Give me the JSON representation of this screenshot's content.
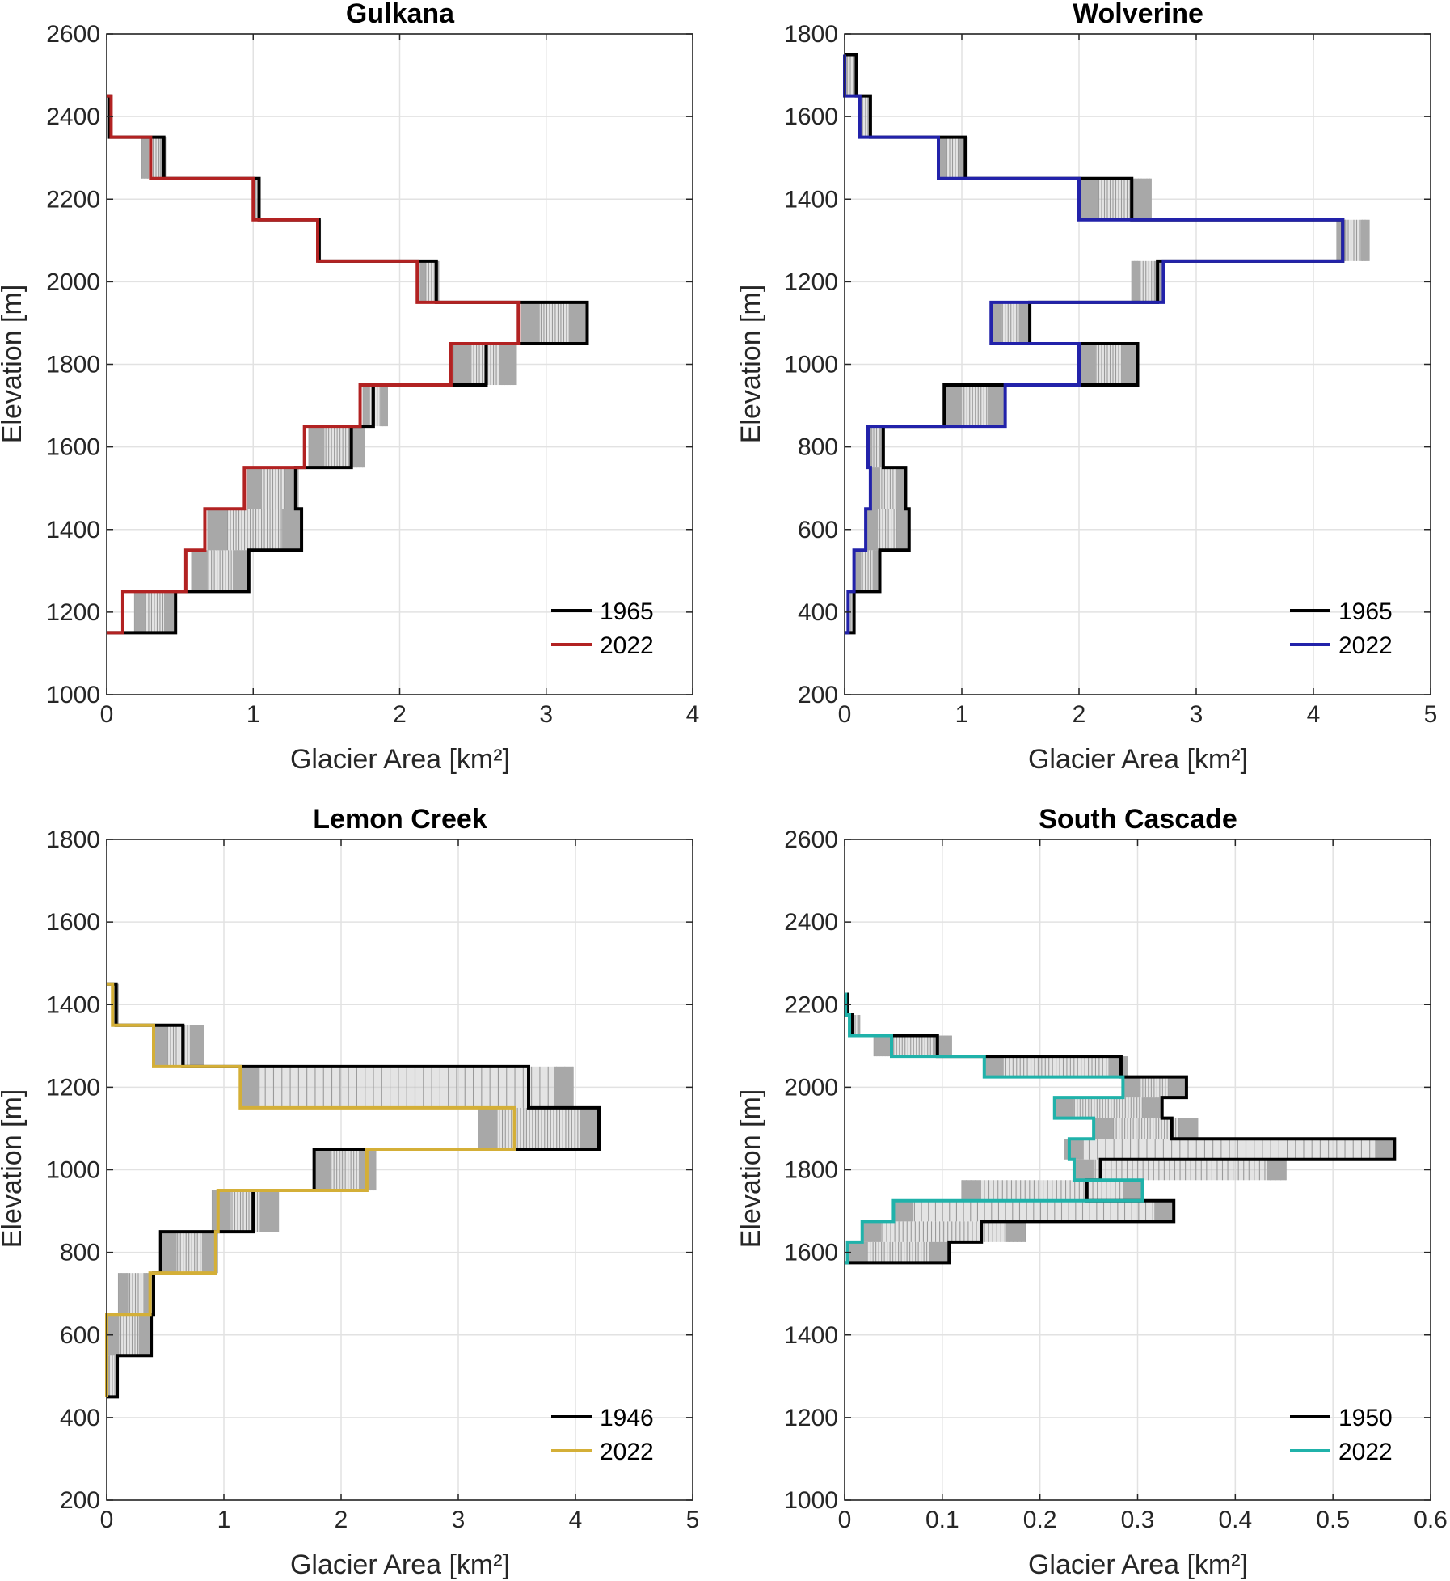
{
  "chart_data": [
    {
      "type": "line",
      "style": "stepped elevation-band profile with shaded annual change bars",
      "title": "Gulkana",
      "xlabel": "Glacier Area [km²]",
      "ylabel": "Elevation [m]",
      "xlim": [
        0,
        4
      ],
      "ylim": [
        1000,
        2600
      ],
      "xticks": [
        0,
        1,
        2,
        3,
        4
      ],
      "yticks": [
        1000,
        1200,
        1400,
        1600,
        1800,
        2000,
        2200,
        2400,
        2600
      ],
      "grid": true,
      "legend_position": "bottom-right",
      "band_edges": [
        1150,
        1250,
        1350,
        1450,
        1550,
        1650,
        1750,
        1850,
        1950,
        2050,
        2150,
        2250,
        2350,
        2450
      ],
      "series": [
        {
          "name": "1965",
          "color": "#000000",
          "values": [
            0.47,
            0.97,
            1.33,
            1.29,
            1.67,
            1.82,
            2.59,
            3.28,
            2.25,
            1.45,
            1.04,
            0.39,
            0.02
          ]
        },
        {
          "name": "2022",
          "color": "#B22222",
          "values": [
            0.11,
            0.54,
            0.67,
            0.94,
            1.35,
            1.73,
            2.35,
            2.81,
            2.12,
            1.44,
            1.0,
            0.3,
            0.03
          ]
        }
      ],
      "range_min": [
        0.19,
        0.58,
        0.69,
        0.96,
        1.38,
        1.75,
        2.37,
        2.83,
        2.14,
        1.44,
        1.0,
        0.24,
        0.02
      ],
      "range_max": [
        0.47,
        0.97,
        1.33,
        1.31,
        1.76,
        1.92,
        2.8,
        3.28,
        2.27,
        1.46,
        1.04,
        0.41,
        0.03
      ]
    },
    {
      "type": "line",
      "style": "stepped elevation-band profile with shaded annual change bars",
      "title": "Wolverine",
      "xlabel": "Glacier Area [km²]",
      "ylabel": "Elevation [m]",
      "xlim": [
        0,
        5
      ],
      "ylim": [
        200,
        1800
      ],
      "xticks": [
        0,
        1,
        2,
        3,
        4,
        5
      ],
      "yticks": [
        200,
        400,
        600,
        800,
        1000,
        1200,
        1400,
        1600,
        1800
      ],
      "grid": true,
      "legend_position": "bottom-right",
      "band_edges": [
        350,
        450,
        550,
        650,
        750,
        850,
        950,
        1050,
        1150,
        1250,
        1350,
        1450,
        1550,
        1650,
        1750
      ],
      "series": [
        {
          "name": "1965",
          "color": "#000000",
          "values": [
            0.08,
            0.3,
            0.55,
            0.52,
            0.33,
            0.85,
            2.5,
            1.58,
            2.67,
            4.25,
            2.45,
            1.03,
            0.22,
            0.1
          ]
        },
        {
          "name": "2022",
          "color": "#2222AA",
          "values": [
            0.03,
            0.08,
            0.18,
            0.22,
            0.2,
            1.37,
            2.0,
            1.25,
            2.72,
            4.25,
            2.0,
            0.8,
            0.13,
            0.0
          ]
        }
      ],
      "range_min": [
        0.03,
        0.08,
        0.18,
        0.22,
        0.2,
        0.85,
        2.0,
        1.25,
        2.45,
        4.2,
        2.0,
        0.8,
        0.13,
        0.0
      ],
      "range_max": [
        0.08,
        0.3,
        0.55,
        0.52,
        0.33,
        1.37,
        2.5,
        1.58,
        2.72,
        4.48,
        2.62,
        1.05,
        0.22,
        0.1
      ]
    },
    {
      "type": "line",
      "style": "stepped elevation-band profile with shaded annual change bars",
      "title": "Lemon Creek",
      "xlabel": "Glacier Area [km²]",
      "ylabel": "Elevation [m]",
      "xlim": [
        0,
        5
      ],
      "ylim": [
        200,
        1800
      ],
      "xticks": [
        0,
        1,
        2,
        3,
        4,
        5
      ],
      "yticks": [
        200,
        400,
        600,
        800,
        1000,
        1200,
        1400,
        1600,
        1800
      ],
      "grid": true,
      "legend_position": "bottom-right",
      "band_edges": [
        450,
        550,
        650,
        750,
        850,
        950,
        1050,
        1150,
        1250,
        1350,
        1450
      ],
      "series": [
        {
          "name": "1946",
          "color": "#000000",
          "values": [
            0.09,
            0.38,
            0.4,
            0.46,
            1.25,
            1.77,
            4.2,
            3.6,
            0.65,
            0.08
          ]
        },
        {
          "name": "2022",
          "color": "#D4AF37",
          "values": [
            0.0,
            0.0,
            0.37,
            0.93,
            0.95,
            2.22,
            3.48,
            1.14,
            0.4,
            0.05
          ]
        }
      ],
      "range_min": [
        0.0,
        0.0,
        0.1,
        0.46,
        0.9,
        1.77,
        3.17,
        1.14,
        0.4,
        0.05
      ],
      "range_max": [
        0.09,
        0.38,
        0.4,
        0.95,
        1.47,
        2.3,
        4.2,
        3.98,
        0.83,
        0.1
      ]
    },
    {
      "type": "line",
      "style": "stepped elevation-band profile with shaded annual change bars",
      "title": "South Cascade",
      "xlabel": "Glacier Area [km²]",
      "ylabel": "Elevation [m]",
      "xlim": [
        0,
        0.6
      ],
      "ylim": [
        1000,
        2600
      ],
      "xticks": [
        0,
        0.1,
        0.2,
        0.3,
        0.4,
        0.5,
        0.6
      ],
      "xtick_labels": [
        "0",
        "0.1",
        "0.2",
        "0.3",
        "0.4",
        "0.5",
        "0.6"
      ],
      "yticks": [
        1000,
        1200,
        1400,
        1600,
        1800,
        2000,
        2200,
        2400,
        2600
      ],
      "grid": true,
      "legend_position": "bottom-right",
      "band_edges": [
        1575,
        1625,
        1675,
        1725,
        1775,
        1825,
        1875,
        1925,
        1975,
        2025,
        2075,
        2125,
        2175,
        2225
      ],
      "series": [
        {
          "name": "1950",
          "color": "#000000",
          "values": [
            0.107,
            0.14,
            0.337,
            0.248,
            0.262,
            0.563,
            0.335,
            0.325,
            0.35,
            0.283,
            0.095,
            0.008,
            0.003
          ]
        },
        {
          "name": "2022",
          "color": "#20B2AA",
          "values": [
            0.003,
            0.018,
            0.05,
            0.305,
            0.235,
            0.23,
            0.255,
            0.215,
            0.285,
            0.143,
            0.048,
            0.005,
            0.001
          ]
        }
      ],
      "range_min": [
        0.003,
        0.018,
        0.05,
        0.12,
        0.235,
        0.225,
        0.255,
        0.215,
        0.285,
        0.143,
        0.03,
        0.005,
        0.001
      ],
      "range_max": [
        0.107,
        0.185,
        0.337,
        0.305,
        0.452,
        0.563,
        0.362,
        0.325,
        0.35,
        0.29,
        0.11,
        0.016,
        0.004
      ]
    }
  ]
}
